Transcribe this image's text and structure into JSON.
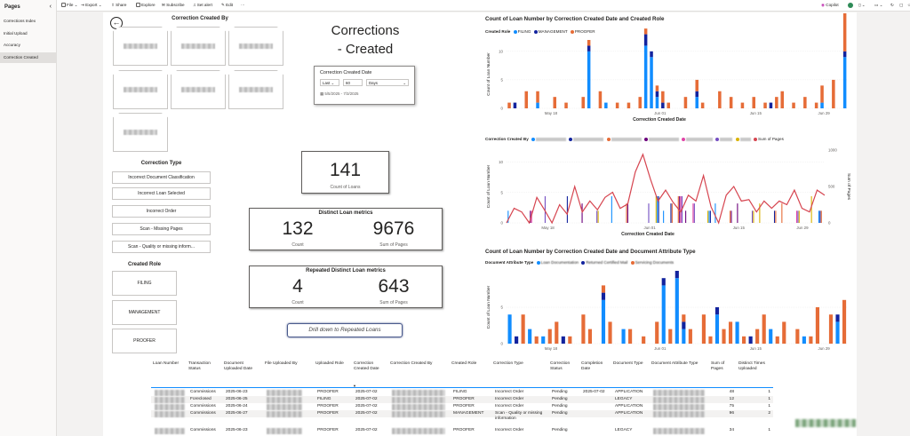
{
  "sidebar": {
    "title": "Pages",
    "collapse_icon": "chevron-left-icon",
    "items": [
      {
        "label": "Corrections Index",
        "active": false
      },
      {
        "label": "Initial Upload",
        "active": false
      },
      {
        "label": "Accuracy",
        "active": false
      },
      {
        "label": "Correction Created",
        "active": true
      }
    ]
  },
  "toolbar": {
    "file": "File",
    "export": "Export",
    "share": "Share",
    "explore": "Explore",
    "subscribe": "Subscribe",
    "set_alert": "Set alert",
    "edit": "Edit",
    "more": "···",
    "copilot": "Copilot"
  },
  "report": {
    "back_icon": "back-arrow-icon",
    "title_line1": "Corrections",
    "title_line2": "- Created",
    "created_by_title": "Correction Created By",
    "correction_type_title": "Correction Type",
    "correction_types": [
      "Incorrect Document Classification",
      "Incorrect Loan Selected",
      "Incorrect Order",
      "Scan - Missing Pages",
      "Scan - Quality or missing inform..."
    ],
    "created_role_title": "Created Role",
    "roles": [
      "FILING",
      "MANAGEMENT",
      "PROOFER"
    ],
    "date_slicer": {
      "title": "Correction Created Date",
      "relative": "Last",
      "amount": "60",
      "unit": "Days",
      "range": "5/5/2025 - 7/3/2025"
    },
    "kpi_count": {
      "value": "141",
      "label": "Count of Loans"
    },
    "distinct_metrics": {
      "title": "Distinct Loan metrics",
      "count": "132",
      "count_label": "Count",
      "pages": "9676",
      "pages_label": "Sum of Pages"
    },
    "repeated_metrics": {
      "title": "Repeated Distinct Loan metrics",
      "count": "4",
      "count_label": "Count",
      "pages": "643",
      "pages_label": "Sum of Pages"
    },
    "drill_button": "Drill down to Repeated Loans"
  },
  "chart_data": [
    {
      "type": "bar",
      "title": "Count of Loan Number by Correction Created Date and Created Role",
      "legend_title": "Created Role",
      "legend_position": "top-left",
      "xlabel": "Correction Created Date",
      "ylabel": "Count of Loan Number",
      "ylim": [
        0,
        12
      ],
      "y_ticks": [
        0,
        5,
        10
      ],
      "x_ticks": [
        "May 18",
        "Jun 01",
        "Jun 15",
        "Jun 29"
      ],
      "series": [
        {
          "name": "FILING",
          "color": "#118dff",
          "values": [
            0,
            0,
            0,
            0,
            0,
            1,
            0,
            0,
            0,
            0,
            0,
            0,
            0,
            0,
            10,
            0,
            0,
            1,
            0,
            0,
            0,
            0,
            0,
            0,
            11,
            9,
            2,
            0,
            0,
            0,
            0,
            0,
            0,
            2,
            0,
            0,
            0,
            0,
            0,
            0,
            0,
            0,
            0,
            0,
            0,
            0,
            0,
            0,
            0,
            0,
            0,
            0,
            0,
            0,
            0,
            1,
            0,
            0,
            0,
            9
          ]
        },
        {
          "name": "MANAGEMENT",
          "color": "#12239e",
          "values": [
            0,
            1,
            0,
            0,
            0,
            0,
            0,
            0,
            0,
            0,
            0,
            0,
            0,
            0,
            1,
            0,
            0,
            0,
            0,
            0,
            0,
            0,
            0,
            0,
            2,
            1,
            1,
            1,
            0,
            0,
            0,
            0,
            0,
            1,
            0,
            0,
            0,
            0,
            0,
            0,
            0,
            0,
            0,
            0,
            0,
            0,
            1,
            0,
            0,
            0,
            0,
            0,
            0,
            0,
            0,
            0,
            0,
            0,
            0,
            1
          ]
        },
        {
          "name": "PROOFER",
          "color": "#e66c37",
          "values": [
            1,
            0,
            0,
            3,
            0,
            2,
            0,
            0,
            2,
            0,
            1,
            0,
            0,
            2,
            1,
            0,
            3,
            0,
            0,
            1,
            0,
            1,
            0,
            2,
            1,
            0,
            1,
            2,
            1,
            0,
            0,
            2,
            0,
            2,
            1,
            0,
            0,
            3,
            0,
            2,
            0,
            1,
            0,
            2,
            0,
            1,
            0,
            2,
            3,
            0,
            1,
            0,
            2,
            0,
            1,
            3,
            0,
            5,
            0,
            7
          ]
        }
      ]
    },
    {
      "type": "bar",
      "title": "",
      "legend_title": "Correction Created By",
      "legend_position": "top-left",
      "xlabel": "Correction Created Date",
      "ylabel": "Count of Loan Number",
      "y2label": "Sum of Pages",
      "ylim": [
        0,
        12
      ],
      "y2lim": [
        0,
        1000
      ],
      "y_ticks": [
        0,
        5,
        10
      ],
      "y2_ticks": [
        0,
        500,
        1000
      ],
      "x_ticks": [
        "May 18",
        "Jun 01",
        "Jun 15",
        "Jun 29"
      ],
      "series": [
        {
          "name": "Sum of Pages",
          "color": "#d64550",
          "kind": "line",
          "axis": "y2",
          "values": [
            0,
            200,
            150,
            0,
            350,
            180,
            0,
            250,
            120,
            500,
            150,
            300,
            180,
            350,
            420,
            200,
            260,
            700,
            940,
            600,
            300,
            450,
            280,
            150,
            380,
            300,
            650,
            220,
            0,
            380,
            500,
            300,
            320,
            150,
            300,
            200,
            300,
            250,
            450,
            200,
            150,
            450,
            380
          ]
        }
      ],
      "bar_counts": [
        1,
        0,
        0,
        2,
        0,
        1,
        0,
        0,
        1,
        0,
        1,
        0,
        2,
        0,
        1,
        0,
        2,
        0,
        0,
        1,
        3,
        1,
        2,
        4,
        1,
        2,
        0,
        3,
        1,
        0,
        2,
        1,
        0,
        2,
        1,
        0,
        2,
        1,
        0,
        3,
        0,
        1,
        3
      ]
    },
    {
      "type": "bar",
      "title": "Count of Loan Number by Correction Created Date and Document Attribute Type",
      "legend_title": "Document Attribute Type",
      "legend_position": "top-left",
      "xlabel": "",
      "ylabel": "Count of Loan Number",
      "ylim": [
        0,
        10
      ],
      "y_ticks": [
        0,
        5
      ],
      "x_ticks": [
        "May 18",
        "Jun 01",
        "Jun 15",
        "Jun 29"
      ],
      "series": [
        {
          "name": "Loan Documentation",
          "color": "#118dff",
          "values": [
            4,
            0,
            0,
            2,
            0,
            1,
            0,
            0,
            0,
            0,
            0,
            0,
            0,
            0,
            6,
            0,
            0,
            2,
            0,
            0,
            0,
            0,
            0,
            8,
            0,
            9,
            2,
            0,
            0,
            0,
            0,
            4,
            0,
            0,
            3,
            0,
            0,
            0,
            0,
            2,
            0,
            0,
            0,
            0,
            1,
            0,
            0,
            0,
            0,
            3,
            0
          ]
        },
        {
          "name": "Returned Certified Mail",
          "color": "#12239e",
          "values": [
            0,
            1,
            0,
            0,
            0,
            0,
            0,
            0,
            1,
            0,
            0,
            0,
            0,
            0,
            1,
            0,
            0,
            0,
            0,
            0,
            0,
            0,
            0,
            1,
            0,
            1,
            1,
            0,
            0,
            0,
            0,
            1,
            0,
            0,
            0,
            0,
            1,
            0,
            0,
            0,
            0,
            0,
            0,
            0,
            0,
            0,
            0,
            0,
            0,
            1,
            0
          ]
        },
        {
          "name": "Servicing Documents",
          "color": "#e66c37",
          "values": [
            0,
            0,
            4,
            0,
            1,
            0,
            2,
            3,
            0,
            1,
            0,
            4,
            2,
            0,
            1,
            3,
            0,
            0,
            2,
            0,
            1,
            0,
            3,
            0,
            2,
            0,
            1,
            2,
            0,
            4,
            1,
            0,
            2,
            3,
            0,
            1,
            0,
            2,
            4,
            0,
            1,
            3,
            0,
            2,
            0,
            1,
            5,
            0,
            4,
            0,
            6
          ]
        }
      ]
    }
  ],
  "table": {
    "columns": [
      "Loan Number",
      "Transaction Status",
      "Document Uploaded Date",
      "File Uploaded By",
      "Uploaded Role",
      "Correction Created Date",
      "Correction Created By",
      "Created Role",
      "Correction Type",
      "Correction Status",
      "Completion Date",
      "Document Type",
      "Document Attribute Type",
      "Sum of Pages",
      "Distinct Times Uploaded"
    ],
    "rows": [
      {
        "transaction": "Commissions",
        "uploaded_date": "2025-06-23",
        "uploaded_role": "PROOFER",
        "created_date": "2025-07-02",
        "created_role": "FILING",
        "correction_type": "Incorrect Order",
        "status": "Pending",
        "completion": "2025-07-02",
        "doc_type": "APPLICATION",
        "pages": "48",
        "times": "1"
      },
      {
        "transaction": "Foreclosed",
        "uploaded_date": "2025-06-25",
        "uploaded_role": "FILING",
        "created_date": "2025-07-02",
        "created_role": "PROOFER",
        "correction_type": "Incorrect Order",
        "status": "Pending",
        "completion": "",
        "doc_type": "LEGACY",
        "pages": "12",
        "times": "1"
      },
      {
        "transaction": "Commissions",
        "uploaded_date": "2025-06-24",
        "uploaded_role": "PROOFER",
        "created_date": "2025-07-02",
        "created_role": "PROOFER",
        "correction_type": "Incorrect Order",
        "status": "Pending",
        "completion": "",
        "doc_type": "APPLICATION",
        "pages": "75",
        "times": "1"
      },
      {
        "transaction": "Commissions",
        "uploaded_date": "2025-06-27",
        "uploaded_role": "PROOFER",
        "created_date": "2025-07-02",
        "created_role": "MANAGEMENT",
        "correction_type": "Scan - Quality or missing information",
        "status": "Pending",
        "completion": "",
        "doc_type": "APPLICATION",
        "pages": "96",
        "times": "2"
      },
      {
        "transaction": "Commissions",
        "uploaded_date": "2025-06-23",
        "uploaded_role": "PROOFER",
        "created_date": "2025-07-02",
        "created_role": "PROOFER",
        "correction_type": "Incorrect Order",
        "status": "Pending",
        "completion": "",
        "doc_type": "LEGACY",
        "pages": "34",
        "times": "1"
      }
    ]
  }
}
